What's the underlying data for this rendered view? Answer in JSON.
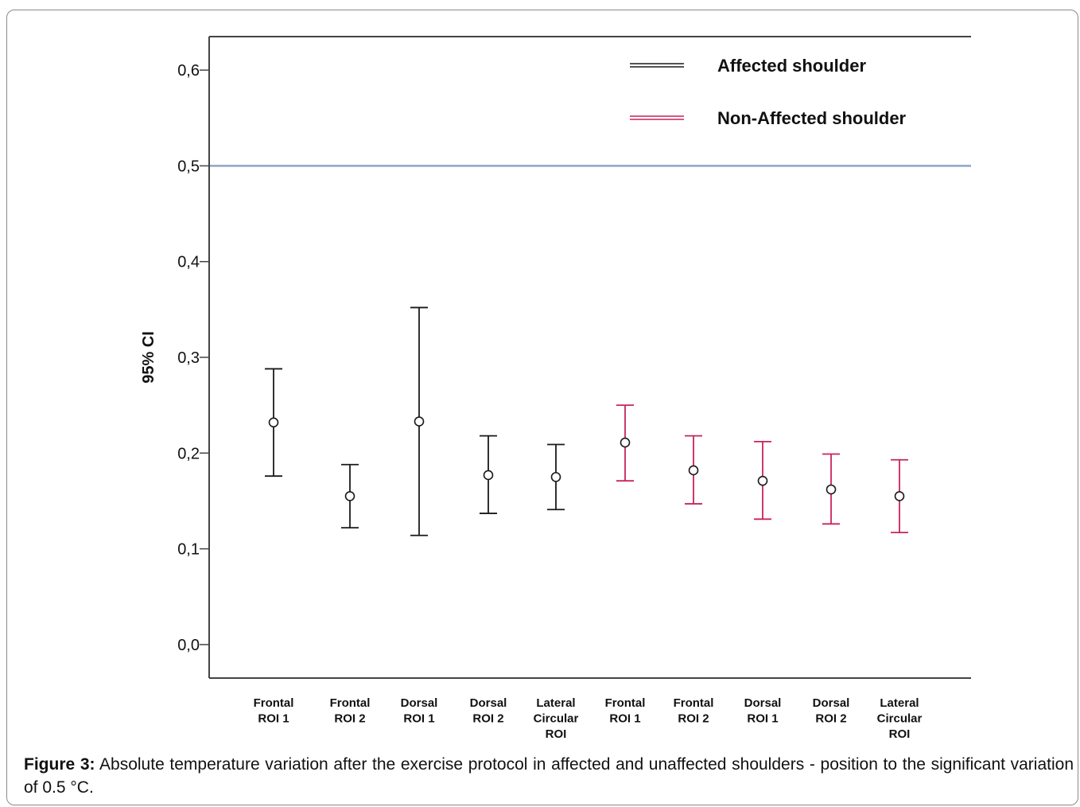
{
  "caption": {
    "label": "Figure 3:",
    "text": "Absolute temperature variation after the exercise protocol in affected and unaffected shoulders - position to the significant variation of 0.5 °C."
  },
  "chart_data": {
    "type": "errorbar",
    "ylabel": "95% CI",
    "ylim": [
      -0.035,
      0.635
    ],
    "yticks": [
      0.0,
      0.1,
      0.2,
      0.3,
      0.4,
      0.5,
      0.6
    ],
    "ytick_labels": [
      "0,0",
      "0,1",
      "0,2",
      "0,3",
      "0,4",
      "0,5",
      "0,6"
    ],
    "reference_line": {
      "y": 0.5,
      "color": "#8fa4cc"
    },
    "legend_position": "top-right",
    "categories": [
      [
        "Frontal",
        "ROI 1"
      ],
      [
        "Frontal",
        "ROI 2"
      ],
      [
        "Dorsal",
        "ROI 1"
      ],
      [
        "Dorsal",
        "ROI 2"
      ],
      [
        "Lateral",
        "Circular",
        "ROI"
      ],
      [
        "Frontal",
        "ROI 1"
      ],
      [
        "Frontal",
        "ROI 2"
      ],
      [
        "Dorsal",
        "ROI 1"
      ],
      [
        "Dorsal",
        "ROI 2"
      ],
      [
        "Lateral",
        "Circular",
        "ROI"
      ]
    ],
    "series": [
      {
        "name": "Affected shoulder",
        "color": "#1a1a1a",
        "category_index": [
          0,
          1,
          2,
          3,
          4
        ],
        "mean": [
          0.232,
          0.155,
          0.233,
          0.177,
          0.175
        ],
        "lower": [
          0.176,
          0.122,
          0.114,
          0.137,
          0.141
        ],
        "upper": [
          0.288,
          0.188,
          0.352,
          0.218,
          0.209
        ]
      },
      {
        "name": "Non-Affected shoulder",
        "color": "#c8245a",
        "category_index": [
          5,
          6,
          7,
          8,
          9
        ],
        "mean": [
          0.211,
          0.182,
          0.171,
          0.162,
          0.155
        ],
        "lower": [
          0.171,
          0.147,
          0.131,
          0.126,
          0.117
        ],
        "upper": [
          0.25,
          0.218,
          0.212,
          0.199,
          0.193
        ]
      }
    ]
  }
}
